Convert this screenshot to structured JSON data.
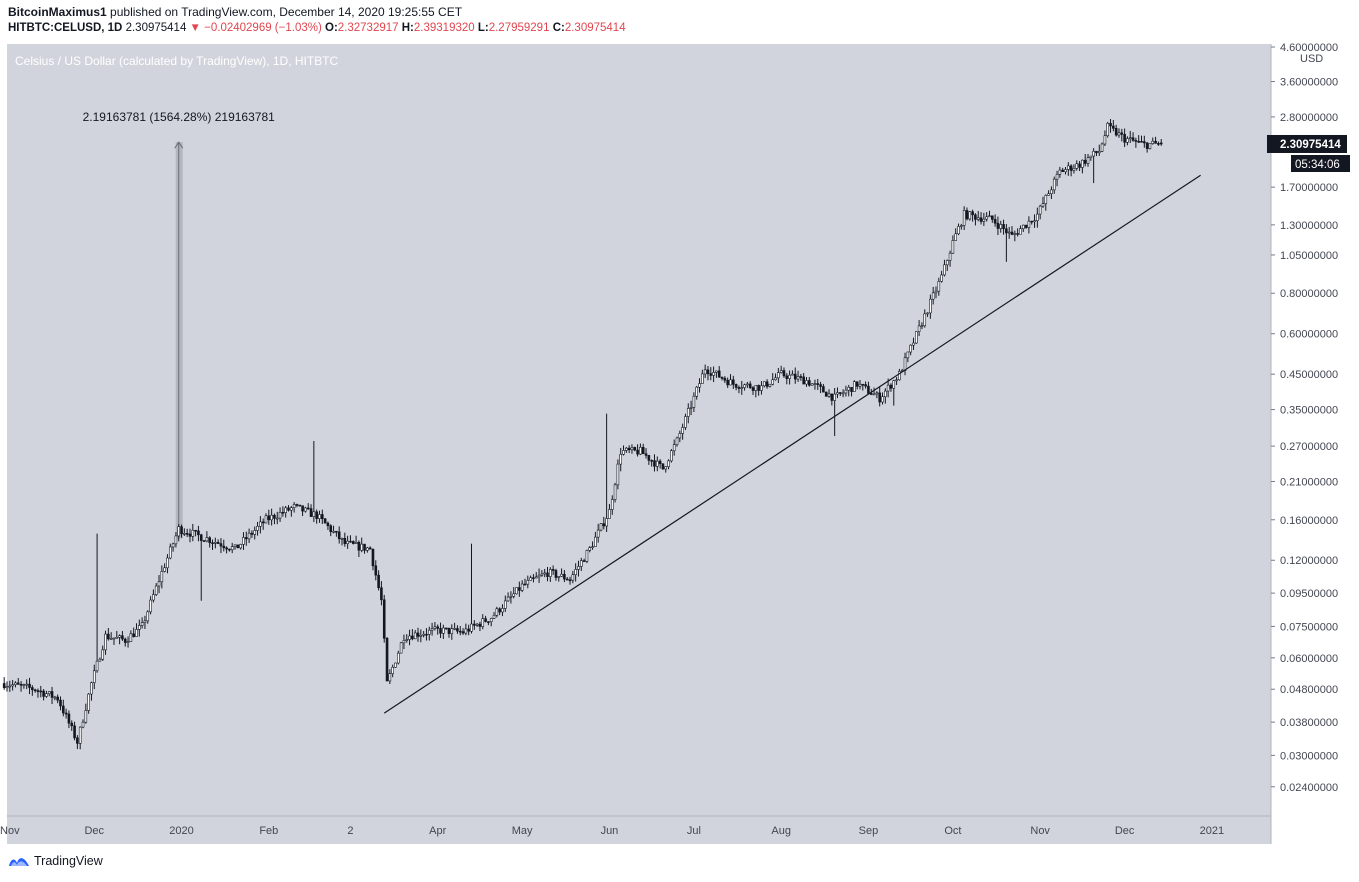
{
  "header": {
    "author": "BitcoinMaximus1",
    "published_text": "published on TradingView.com, December 14, 2020 19:25:55 CET",
    "symbol_line": "HITBTC:CELUSD, 1D",
    "last": "2.30975414",
    "change_arrow": "▼",
    "change": "−0.02402969 (−1.03%)",
    "o_label": "O:",
    "o": "2.32732917",
    "h_label": "H:",
    "h": "2.39319320",
    "l_label": "L:",
    "l": "2.27959291",
    "c_label": "C:",
    "c": "2.30975414"
  },
  "footer": {
    "brand": "TradingView",
    "logo_icon": "tradingview-logo-icon"
  },
  "colors": {
    "background": "#d1d4dc",
    "axis_bg": "#ffffff",
    "candle": "#131722",
    "measure_fill": "#b0b3bc",
    "label_dark": "#131722",
    "negative": "#e0464f"
  },
  "chart_data": {
    "type": "candlestick",
    "title": "Celsius / US Dollar (calculated by TradingView), 1D, HITBTC",
    "y_scale": "log",
    "currency_label": "USD",
    "ylim": [
      0.0195,
      4.7
    ],
    "y_ticks": [
      {
        "value": 4.6,
        "label": "4.60000000"
      },
      {
        "value": 3.6,
        "label": "3.60000000"
      },
      {
        "value": 2.8,
        "label": "2.80000000"
      },
      {
        "value": 1.7,
        "label": "1.70000000"
      },
      {
        "value": 1.3,
        "label": "1.30000000"
      },
      {
        "value": 1.05,
        "label": "1.05000000"
      },
      {
        "value": 0.8,
        "label": "0.80000000"
      },
      {
        "value": 0.6,
        "label": "0.60000000"
      },
      {
        "value": 0.45,
        "label": "0.45000000"
      },
      {
        "value": 0.35,
        "label": "0.35000000"
      },
      {
        "value": 0.27,
        "label": "0.27000000"
      },
      {
        "value": 0.21,
        "label": "0.21000000"
      },
      {
        "value": 0.16,
        "label": "0.16000000"
      },
      {
        "value": 0.12,
        "label": "0.12000000"
      },
      {
        "value": 0.095,
        "label": "0.09500000"
      },
      {
        "value": 0.075,
        "label": "0.07500000"
      },
      {
        "value": 0.06,
        "label": "0.06000000"
      },
      {
        "value": 0.048,
        "label": "0.04800000"
      },
      {
        "value": 0.038,
        "label": "0.03800000"
      },
      {
        "value": 0.03,
        "label": "0.03000000"
      },
      {
        "value": 0.024,
        "label": "0.02400000"
      }
    ],
    "x_ticks": [
      {
        "date": "2019-11-01",
        "label": "Nov"
      },
      {
        "date": "2019-12-01",
        "label": "Dec"
      },
      {
        "date": "2020-01-01",
        "label": "2020"
      },
      {
        "date": "2020-02-01",
        "label": "Feb"
      },
      {
        "date": "2020-03-01",
        "label": "2"
      },
      {
        "date": "2020-04-01",
        "label": "Apr"
      },
      {
        "date": "2020-05-01",
        "label": "May"
      },
      {
        "date": "2020-06-01",
        "label": "Jun"
      },
      {
        "date": "2020-07-01",
        "label": "Jul"
      },
      {
        "date": "2020-08-01",
        "label": "Aug"
      },
      {
        "date": "2020-09-01",
        "label": "Sep"
      },
      {
        "date": "2020-10-01",
        "label": "Oct"
      },
      {
        "date": "2020-11-01",
        "label": "Nov"
      },
      {
        "date": "2020-12-01",
        "label": "Dec"
      },
      {
        "date": "2021-01-01",
        "label": "2021"
      }
    ],
    "date_range": [
      "2019-10-30",
      "2020-12-14"
    ],
    "price_path": [
      [
        "2019-10-30",
        0.05
      ],
      [
        "2019-11-10",
        0.048
      ],
      [
        "2019-11-18",
        0.045
      ],
      [
        "2019-11-25",
        0.033
      ],
      [
        "2019-11-30",
        0.05
      ],
      [
        "2019-12-05",
        0.07
      ],
      [
        "2019-12-12",
        0.068
      ],
      [
        "2019-12-18",
        0.075
      ],
      [
        "2019-12-25",
        0.11
      ],
      [
        "2019-12-31",
        0.15
      ],
      [
        "2020-01-10",
        0.14
      ],
      [
        "2020-01-20",
        0.13
      ],
      [
        "2020-01-31",
        0.16
      ],
      [
        "2020-02-10",
        0.175
      ],
      [
        "2020-02-18",
        0.165
      ],
      [
        "2020-02-28",
        0.135
      ],
      [
        "2020-03-08",
        0.13
      ],
      [
        "2020-03-12",
        0.09
      ],
      [
        "2020-03-14",
        0.05
      ],
      [
        "2020-03-20",
        0.07
      ],
      [
        "2020-04-01",
        0.073
      ],
      [
        "2020-04-10",
        0.072
      ],
      [
        "2020-04-20",
        0.08
      ],
      [
        "2020-05-01",
        0.1
      ],
      [
        "2020-05-10",
        0.11
      ],
      [
        "2020-05-18",
        0.105
      ],
      [
        "2020-05-25",
        0.13
      ],
      [
        "2020-06-01",
        0.17
      ],
      [
        "2020-06-05",
        0.26
      ],
      [
        "2020-06-12",
        0.26
      ],
      [
        "2020-06-20",
        0.23
      ],
      [
        "2020-06-25",
        0.28
      ],
      [
        "2020-07-01",
        0.38
      ],
      [
        "2020-07-05",
        0.47
      ],
      [
        "2020-07-15",
        0.42
      ],
      [
        "2020-07-25",
        0.41
      ],
      [
        "2020-08-01",
        0.45
      ],
      [
        "2020-08-10",
        0.43
      ],
      [
        "2020-08-20",
        0.38
      ],
      [
        "2020-08-28",
        0.42
      ],
      [
        "2020-09-05",
        0.38
      ],
      [
        "2020-09-12",
        0.45
      ],
      [
        "2020-09-20",
        0.65
      ],
      [
        "2020-09-27",
        0.9
      ],
      [
        "2020-10-01",
        1.15
      ],
      [
        "2020-10-05",
        1.4
      ],
      [
        "2020-10-15",
        1.35
      ],
      [
        "2020-10-22",
        1.2
      ],
      [
        "2020-10-31",
        1.4
      ],
      [
        "2020-11-08",
        1.9
      ],
      [
        "2020-11-15",
        2.0
      ],
      [
        "2020-11-22",
        2.2
      ],
      [
        "2020-11-25",
        2.6
      ],
      [
        "2020-12-01",
        2.4
      ],
      [
        "2020-12-08",
        2.3
      ],
      [
        "2020-12-14",
        2.31
      ]
    ],
    "spikes": [
      {
        "date": "2019-12-02",
        "high": 0.145
      },
      {
        "date": "2020-01-08",
        "low": 0.09
      },
      {
        "date": "2020-02-17",
        "high": 0.28
      },
      {
        "date": "2020-04-13",
        "high": 0.135
      },
      {
        "date": "2020-05-31",
        "high": 0.34
      },
      {
        "date": "2020-08-20",
        "low": 0.29
      },
      {
        "date": "2020-09-10",
        "low": 0.36
      },
      {
        "date": "2020-10-20",
        "low": 1.0
      },
      {
        "date": "2020-11-20",
        "low": 1.75
      }
    ],
    "last_price": {
      "value": 2.30975414,
      "label": "2.30975414",
      "countdown": "05:34:06"
    },
    "measure": {
      "from": {
        "date": "2019-12-31",
        "value": 0.14
      },
      "to": {
        "date": "2019-12-31",
        "value": 2.34
      },
      "label": "2.19163781 (1564.28%) 219163781"
    },
    "trendline": {
      "from": {
        "date": "2020-03-13",
        "value": 0.0405
      },
      "to": {
        "date": "2020-12-28",
        "value": 1.85
      }
    }
  }
}
